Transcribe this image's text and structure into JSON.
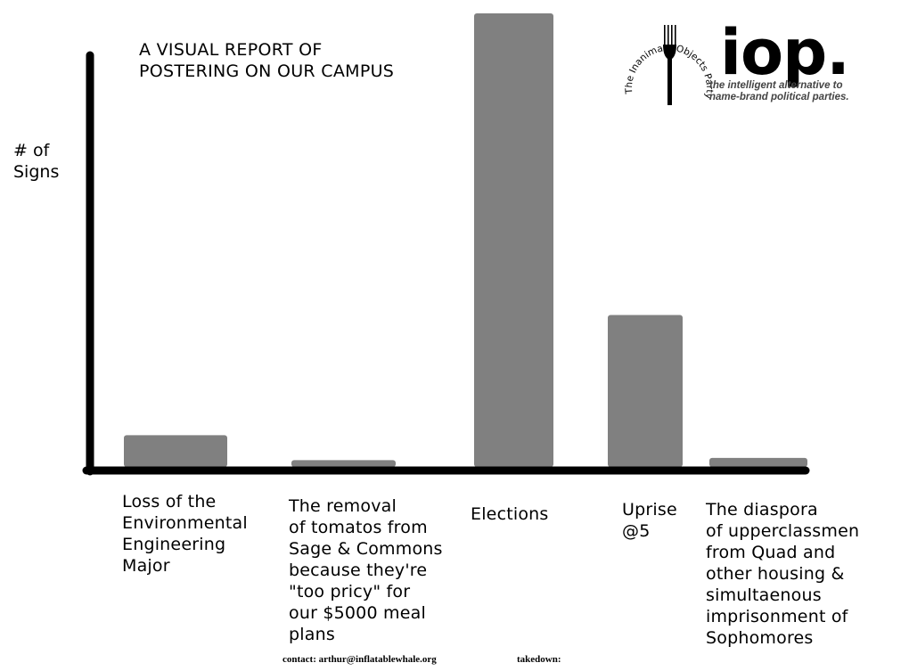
{
  "chart_data": {
    "type": "bar",
    "title": "A VISUAL REPORT OF\nPOSTERING ON OUR CAMPUS",
    "ylabel": "# of\nSigns",
    "xlabel": "",
    "categories": [
      "Loss of the\nEnvironmental\nEngineering\nMajor",
      "The removal\nof tomatos from\nSage & Commons\nbecause they're\n\"too pricy\" for\nour $5000 meal\nplans",
      "Elections",
      "Uprise\n@5",
      "The diaspora\nof upperclassmen\nfrom Quad and\nother housing &\nsimultaenous\nimprisonment of\nSophomores"
    ],
    "values": [
      7,
      1.5,
      100,
      33.5,
      2
    ],
    "ylim": [
      0,
      100
    ],
    "grid": false,
    "legend": "none",
    "colors": {
      "bar": "#808080",
      "axis": "#000000"
    }
  },
  "logo": {
    "word": "iop.",
    "ring_text": "The Inanimate Objects Party",
    "tagline": "the intelligent alternative to\nname-brand political parties.",
    "icon": "fork-icon"
  },
  "footer": {
    "contact": "contact: arthur@inflatablewhale.org",
    "takedown": "takedown:"
  }
}
